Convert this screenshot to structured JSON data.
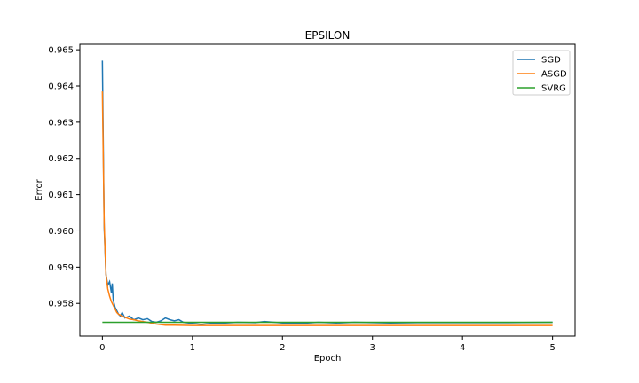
{
  "chart_data": {
    "type": "line",
    "title": "EPSILON",
    "xlabel": "Epoch",
    "ylabel": "Error",
    "xlim": [
      -0.25,
      5.25
    ],
    "ylim": [
      957.1,
      965.15
    ],
    "xticks": [
      0,
      1,
      2,
      3,
      4,
      5
    ],
    "yticks": [
      0.958,
      0.959,
      0.96,
      0.961,
      0.962,
      0.963,
      0.964,
      0.965
    ],
    "ytick_labels": [
      "0.958",
      "0.959",
      "0.960",
      "0.961",
      "0.962",
      "0.963",
      "0.964",
      "0.965"
    ],
    "xtick_labels": [
      "0",
      "1",
      "2",
      "3",
      "4",
      "5"
    ],
    "grid": false,
    "legend_position": "top-right",
    "series": [
      {
        "name": "SGD",
        "color": "#1f77b4",
        "x": [
          0.0,
          0.02,
          0.04,
          0.06,
          0.08,
          0.1,
          0.11,
          0.12,
          0.13,
          0.14,
          0.16,
          0.18,
          0.2,
          0.22,
          0.25,
          0.3,
          0.35,
          0.4,
          0.45,
          0.5,
          0.55,
          0.6,
          0.65,
          0.7,
          0.75,
          0.8,
          0.85,
          0.9,
          1.0,
          1.1,
          1.2,
          1.3,
          1.5,
          1.7,
          1.8,
          2.0,
          2.1,
          2.2,
          2.4,
          2.6,
          2.8,
          3.0,
          3.2,
          3.5,
          4.0,
          4.5,
          5.0
        ],
        "y": [
          0.9647,
          0.9601,
          0.9588,
          0.9585,
          0.9586,
          0.9583,
          0.95855,
          0.9581,
          0.958,
          0.9579,
          0.9578,
          0.9577,
          0.95765,
          0.95775,
          0.9576,
          0.95765,
          0.95755,
          0.9576,
          0.95755,
          0.95758,
          0.9575,
          0.95748,
          0.95752,
          0.9576,
          0.95755,
          0.95752,
          0.95755,
          0.95748,
          0.95745,
          0.95742,
          0.95745,
          0.95745,
          0.95748,
          0.95747,
          0.9575,
          0.95746,
          0.95745,
          0.95745,
          0.95748,
          0.95746,
          0.95748,
          0.95747,
          0.95746,
          0.95747,
          0.95747,
          0.95747,
          0.95748
        ]
      },
      {
        "name": "ASGD",
        "color": "#ff7f0e",
        "x": [
          0.0,
          0.02,
          0.04,
          0.06,
          0.08,
          0.1,
          0.12,
          0.14,
          0.16,
          0.18,
          0.2,
          0.22,
          0.25,
          0.3,
          0.35,
          0.4,
          0.5,
          0.6,
          0.7,
          0.8,
          1.0,
          1.5,
          2.0,
          3.0,
          4.0,
          5.0
        ],
        "y": [
          0.96385,
          0.9602,
          0.9588,
          0.9584,
          0.9582,
          0.95805,
          0.95795,
          0.95785,
          0.95775,
          0.9577,
          0.95768,
          0.95765,
          0.95762,
          0.95757,
          0.95755,
          0.95752,
          0.95748,
          0.95743,
          0.9574,
          0.9574,
          0.95739,
          0.95739,
          0.95739,
          0.95739,
          0.95739,
          0.95739
        ]
      },
      {
        "name": "SVRG",
        "color": "#2ca02c",
        "x": [
          0.0,
          0.5,
          1.0,
          1.5,
          2.0,
          2.5,
          3.0,
          3.5,
          4.0,
          4.5,
          5.0
        ],
        "y": [
          0.95748,
          0.95748,
          0.95748,
          0.95748,
          0.95748,
          0.95748,
          0.95748,
          0.95748,
          0.95748,
          0.95748,
          0.95748
        ]
      }
    ]
  }
}
